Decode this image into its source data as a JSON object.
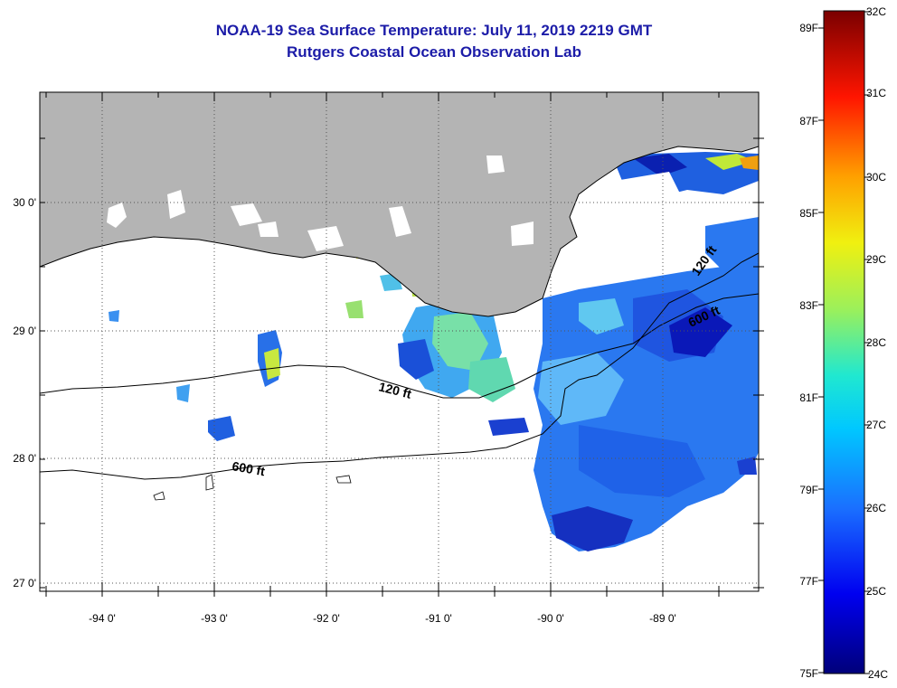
{
  "title": {
    "line1": "NOAA-19 Sea Surface Temperature:  July 11, 2019 2219 GMT",
    "line2": "Rutgers Coastal Ocean Observation Lab"
  },
  "axes": {
    "longitude_labels": [
      "-94 0'",
      "-93 0'",
      "-92 0'",
      "-91 0'",
      "-90 0'",
      "-89 0'"
    ],
    "latitude_labels": [
      "30 0'",
      "29 0'",
      "28 0'",
      "27 0'"
    ]
  },
  "contours": {
    "c120_a": "120 ft",
    "c120_b": "120 ft",
    "c600_a": "600 ft",
    "c600_b": "600 ft"
  },
  "colorbar": {
    "fahrenheit_labels": [
      "89F",
      "87F",
      "85F",
      "83F",
      "81F",
      "79F",
      "77F",
      "75F"
    ],
    "celsius_labels": [
      "32C",
      "31C",
      "30C",
      "29C",
      "28C",
      "27C",
      "26C",
      "25C",
      "24C"
    ]
  },
  "colors": {
    "land": "#b4b4b4",
    "ocean_missing": "#ffffff",
    "title": "#1c1ca8"
  }
}
